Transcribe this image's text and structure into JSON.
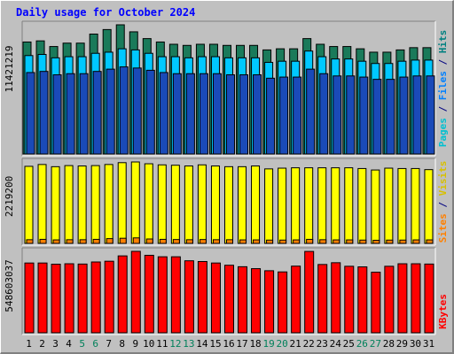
{
  "title": "Daily usage for October 2024",
  "chart_data": [
    {
      "type": "bar",
      "panel": "pages-files-hits",
      "max_label": "11421219",
      "labels": [
        {
          "key": "pages",
          "text": "Pages",
          "color": "#00c0d0"
        },
        {
          "key": "sep1",
          "text": " / ",
          "color": "#000080"
        },
        {
          "key": "files",
          "text": "Files",
          "color": "#0080ff"
        },
        {
          "key": "sep2",
          "text": " / ",
          "color": "#000080"
        },
        {
          "key": "hits",
          "text": "Hits",
          "color": "#008080"
        }
      ],
      "categories": [
        "1",
        "2",
        "3",
        "4",
        "5",
        "6",
        "7",
        "8",
        "9",
        "10",
        "11",
        "12",
        "13",
        "14",
        "15",
        "16",
        "17",
        "18",
        "19",
        "20",
        "21",
        "22",
        "23",
        "24",
        "25",
        "26",
        "27",
        "28",
        "29",
        "30",
        "31"
      ],
      "weekend_days": [
        "5",
        "6",
        "12",
        "13",
        "19",
        "20",
        "26",
        "27"
      ],
      "ylim": [
        0,
        11421219
      ],
      "series": [
        {
          "name": "Hits",
          "color": "#1a7a5a",
          "values": [
            9900000,
            10000000,
            9500000,
            9800000,
            9800000,
            10600000,
            11000000,
            11421219,
            10800000,
            10200000,
            9900000,
            9700000,
            9600000,
            9700000,
            9700000,
            9600000,
            9600000,
            9600000,
            9200000,
            9300000,
            9300000,
            10200000,
            9700000,
            9500000,
            9500000,
            9300000,
            9000000,
            9000000,
            9200000,
            9400000,
            9400000
          ]
        },
        {
          "name": "Files",
          "color": "#00c8ff",
          "values": [
            8700000,
            8800000,
            8500000,
            8600000,
            8600000,
            8900000,
            9000000,
            9300000,
            9200000,
            8900000,
            8600000,
            8600000,
            8500000,
            8600000,
            8600000,
            8500000,
            8500000,
            8500000,
            8100000,
            8200000,
            8200000,
            9100000,
            8600000,
            8400000,
            8400000,
            8200000,
            8000000,
            8000000,
            8200000,
            8300000,
            8300000
          ]
        },
        {
          "name": "Pages",
          "color": "#1a4ab8",
          "values": [
            7200000,
            7300000,
            7000000,
            7100000,
            7100000,
            7300000,
            7500000,
            7700000,
            7600000,
            7400000,
            7200000,
            7100000,
            7100000,
            7100000,
            7100000,
            7000000,
            7000000,
            7000000,
            6700000,
            6800000,
            6800000,
            7500000,
            7100000,
            6900000,
            6900000,
            6800000,
            6600000,
            6600000,
            6800000,
            6900000,
            6900000
          ]
        }
      ]
    },
    {
      "type": "bar",
      "panel": "visits-sites",
      "max_label": "2219200",
      "labels": [
        {
          "key": "sites",
          "text": "Sites",
          "color": "#ff8000"
        },
        {
          "key": "sep1",
          "text": " / ",
          "color": "#000080"
        },
        {
          "key": "visits",
          "text": "Visits",
          "color": "#d8c000"
        }
      ],
      "categories": [
        "1",
        "2",
        "3",
        "4",
        "5",
        "6",
        "7",
        "8",
        "9",
        "10",
        "11",
        "12",
        "13",
        "14",
        "15",
        "16",
        "17",
        "18",
        "19",
        "20",
        "21",
        "22",
        "23",
        "24",
        "25",
        "26",
        "27",
        "28",
        "29",
        "30",
        "31"
      ],
      "ylim": [
        0,
        2219200
      ],
      "series": [
        {
          "name": "Visits",
          "color": "#ffff00",
          "values": [
            2100000,
            2150000,
            2090000,
            2120000,
            2110000,
            2120000,
            2150000,
            2200000,
            2219200,
            2170000,
            2140000,
            2130000,
            2110000,
            2140000,
            2110000,
            2090000,
            2090000,
            2110000,
            2030000,
            2050000,
            2060000,
            2060000,
            2060000,
            2060000,
            2060000,
            2040000,
            2000000,
            2050000,
            2040000,
            2040000,
            2010000
          ]
        },
        {
          "name": "Sites",
          "color": "#ff8000",
          "values": [
            100000,
            110000,
            95000,
            100000,
            100000,
            110000,
            130000,
            140000,
            150000,
            120000,
            110000,
            105000,
            100000,
            105000,
            100000,
            100000,
            95000,
            95000,
            90000,
            90000,
            95000,
            110000,
            100000,
            95000,
            95000,
            90000,
            85000,
            90000,
            90000,
            95000,
            95000
          ]
        }
      ]
    },
    {
      "type": "bar",
      "panel": "kbytes",
      "max_label": "548603037",
      "labels": [
        {
          "key": "kbytes",
          "text": "KBytes",
          "color": "#ff0000"
        }
      ],
      "categories": [
        "1",
        "2",
        "3",
        "4",
        "5",
        "6",
        "7",
        "8",
        "9",
        "10",
        "11",
        "12",
        "13",
        "14",
        "15",
        "16",
        "17",
        "18",
        "19",
        "20",
        "21",
        "22",
        "23",
        "24",
        "25",
        "26",
        "27",
        "28",
        "29",
        "30",
        "31"
      ],
      "ylim": [
        0,
        548603037
      ],
      "series": [
        {
          "name": "KBytes",
          "color": "#ff0000",
          "values": [
            470000000,
            470000000,
            462000000,
            465000000,
            463000000,
            477000000,
            482000000,
            518000000,
            548603037,
            522000000,
            512000000,
            512000000,
            485000000,
            480000000,
            470000000,
            455000000,
            445000000,
            432000000,
            418000000,
            410000000,
            449000000,
            548000000,
            460000000,
            472000000,
            448000000,
            444000000,
            408000000,
            448000000,
            465000000,
            465000000,
            463000000
          ]
        }
      ]
    }
  ]
}
